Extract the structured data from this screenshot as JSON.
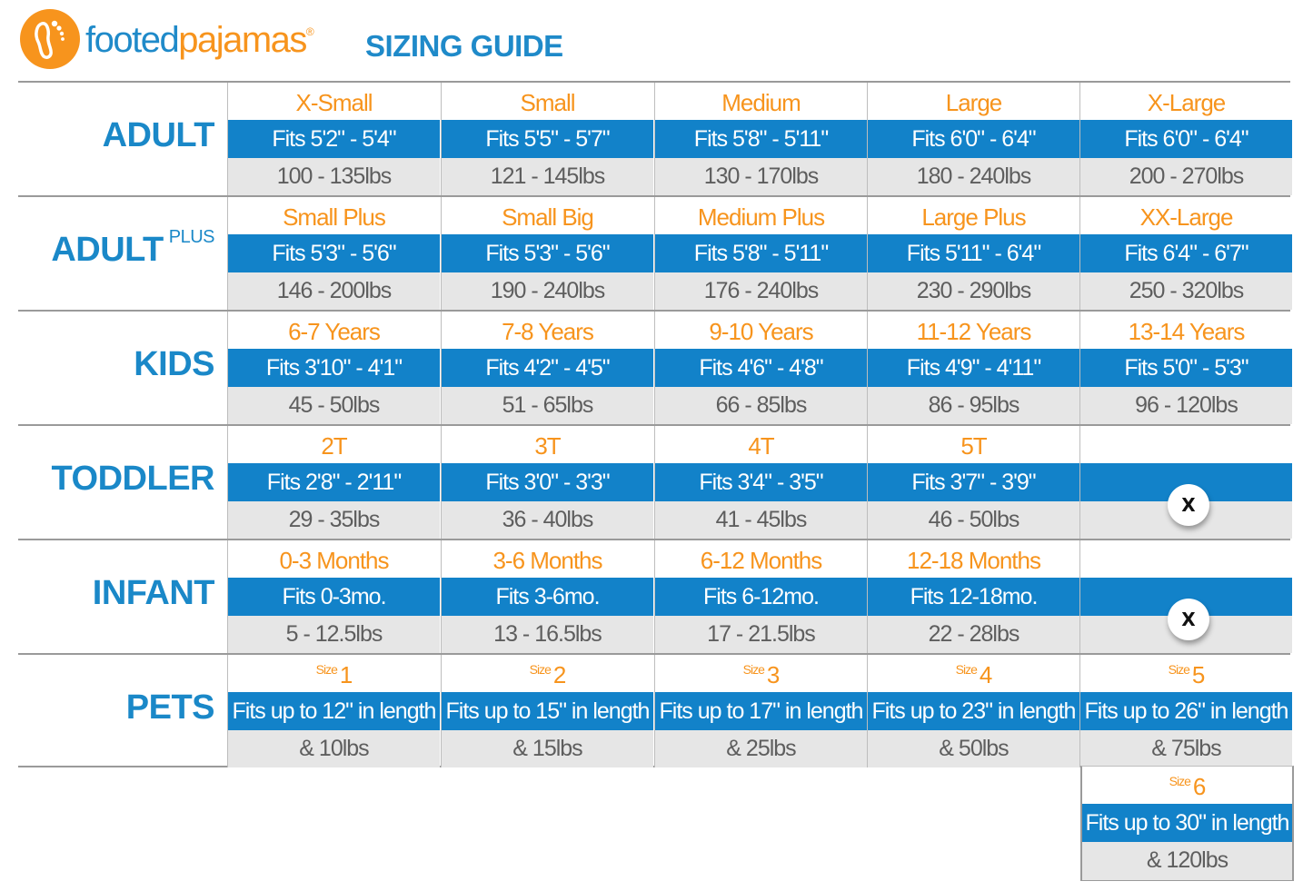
{
  "header": {
    "brand_part1": "footed",
    "brand_part2": "pajamas",
    "brand_mark": "®",
    "title": "SIZING GUIDE",
    "logo_icon": "footprint-icon"
  },
  "colors": {
    "blue": "#1282c9",
    "orange": "#f7941d",
    "gray_row": "#e6e6e6"
  },
  "categories": [
    {
      "label": "ADULT",
      "cols": [
        {
          "size": "X-Small",
          "fit": "Fits 5'2\" - 5'4\"",
          "weight": "100 - 135lbs"
        },
        {
          "size": "Small",
          "fit": "Fits 5'5\" - 5'7\"",
          "weight": "121 - 145lbs"
        },
        {
          "size": "Medium",
          "fit": "Fits 5'8\" - 5'11\"",
          "weight": "130 - 170lbs"
        },
        {
          "size": "Large",
          "fit": "Fits 6'0\" - 6'4\"",
          "weight": "180 - 240lbs"
        },
        {
          "size": "X-Large",
          "fit": "Fits 6'0\" - 6'4\"",
          "weight": "200 - 270lbs"
        }
      ]
    },
    {
      "label": "ADULT",
      "label_sup": "PLUS",
      "cols": [
        {
          "size": "Small Plus",
          "fit": "Fits 5'3\" - 5'6\"",
          "weight": "146 - 200lbs"
        },
        {
          "size": "Small Big",
          "fit": "Fits 5'3\" - 5'6\"",
          "weight": "190 - 240lbs"
        },
        {
          "size": "Medium Plus",
          "fit": "Fits 5'8\" - 5'11\"",
          "weight": "176 - 240lbs"
        },
        {
          "size": "Large Plus",
          "fit": "Fits 5'11\" - 6'4\"",
          "weight": "230 - 290lbs"
        },
        {
          "size": "XX-Large",
          "fit": "Fits 6'4\" - 6'7\"",
          "weight": "250 - 320lbs"
        }
      ]
    },
    {
      "label": "KIDS",
      "cols": [
        {
          "size": "6-7 Years",
          "fit": "Fits 3'10\" - 4'1\"",
          "weight": "45 - 50lbs"
        },
        {
          "size": "7-8 Years",
          "fit": "Fits 4'2\" - 4'5\"",
          "weight": "51 - 65lbs"
        },
        {
          "size": "9-10 Years",
          "fit": "Fits 4'6\" - 4'8\"",
          "weight": "66 - 85lbs"
        },
        {
          "size": "11-12 Years",
          "fit": "Fits 4'9\" - 4'11\"",
          "weight": "86 - 95lbs"
        },
        {
          "size": "13-14 Years",
          "fit": "Fits 5'0\" - 5'3\"",
          "weight": "96 - 120lbs"
        }
      ]
    },
    {
      "label": "TODDLER",
      "cols": [
        {
          "size": "2T",
          "fit": "Fits 2'8\" - 2'11\"",
          "weight": "29 - 35lbs"
        },
        {
          "size": "3T",
          "fit": "Fits 3'0\" - 3'3\"",
          "weight": "36 - 40lbs"
        },
        {
          "size": "4T",
          "fit": "Fits 3'4\" - 3'5\"",
          "weight": "41 - 45lbs"
        },
        {
          "size": "5T",
          "fit": "Fits 3'7\" - 3'9\"",
          "weight": "46 - 50lbs"
        },
        {
          "size": "",
          "fit": "",
          "weight": "",
          "unavailable": "X"
        }
      ]
    },
    {
      "label": "INFANT",
      "cols": [
        {
          "size": "0-3 Months",
          "fit": "Fits 0-3mo.",
          "weight": "5 - 12.5lbs"
        },
        {
          "size": "3-6 Months",
          "fit": "Fits 3-6mo.",
          "weight": "13 - 16.5lbs"
        },
        {
          "size": "6-12 Months",
          "fit": "Fits 6-12mo.",
          "weight": "17 - 21.5lbs"
        },
        {
          "size": "12-18 Months",
          "fit": "Fits 12-18mo.",
          "weight": "22 - 28lbs"
        },
        {
          "size": "",
          "fit": "",
          "weight": "",
          "unavailable": "X"
        }
      ]
    },
    {
      "label": "PETS",
      "cols": [
        {
          "size_prefix": "Size",
          "size": "1",
          "fit": "Fits up to 12\" in length",
          "weight": "& 10lbs"
        },
        {
          "size_prefix": "Size",
          "size": "2",
          "fit": "Fits up to 15\" in length",
          "weight": "& 15lbs"
        },
        {
          "size_prefix": "Size",
          "size": "3",
          "fit": "Fits up to 17\" in length",
          "weight": "& 25lbs"
        },
        {
          "size_prefix": "Size",
          "size": "4",
          "fit": "Fits up to 23\" in length",
          "weight": "& 50lbs"
        },
        {
          "size_prefix": "Size",
          "size": "5",
          "fit": "Fits up to 26\" in length",
          "weight": "& 75lbs"
        }
      ]
    }
  ],
  "pets_extra": {
    "size_prefix": "Size",
    "size": "6",
    "fit": "Fits up to 30\" in length",
    "weight": "& 120lbs"
  }
}
